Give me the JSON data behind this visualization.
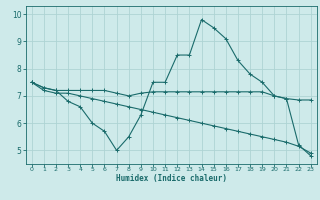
{
  "title": "",
  "xlabel": "Humidex (Indice chaleur)",
  "bg_color": "#ceeaea",
  "grid_color": "#aed4d4",
  "line_color": "#1a6b6b",
  "xlim": [
    -0.5,
    23.5
  ],
  "ylim": [
    4.5,
    10.3
  ],
  "xticks": [
    0,
    1,
    2,
    3,
    4,
    5,
    6,
    7,
    8,
    9,
    10,
    11,
    12,
    13,
    14,
    15,
    16,
    17,
    18,
    19,
    20,
    21,
    22,
    23
  ],
  "yticks": [
    5,
    6,
    7,
    8,
    9,
    10
  ],
  "x": [
    0,
    1,
    2,
    3,
    4,
    5,
    6,
    7,
    8,
    9,
    10,
    11,
    12,
    13,
    14,
    15,
    16,
    17,
    18,
    19,
    20,
    21,
    22,
    23
  ],
  "line1": [
    7.5,
    7.3,
    7.2,
    7.2,
    7.2,
    7.2,
    7.2,
    7.1,
    7.0,
    7.1,
    7.15,
    7.15,
    7.15,
    7.15,
    7.15,
    7.15,
    7.15,
    7.15,
    7.15,
    7.15,
    7.0,
    6.9,
    6.85,
    6.85
  ],
  "line2": [
    7.5,
    7.3,
    7.2,
    6.8,
    6.6,
    6.0,
    5.7,
    5.0,
    5.5,
    6.3,
    7.5,
    7.5,
    8.5,
    8.5,
    9.8,
    9.5,
    9.1,
    8.3,
    7.8,
    7.5,
    7.0,
    6.9,
    5.2,
    4.8
  ],
  "line3": [
    7.5,
    7.2,
    7.1,
    7.1,
    7.0,
    6.9,
    6.8,
    6.7,
    6.6,
    6.5,
    6.4,
    6.3,
    6.2,
    6.1,
    6.0,
    5.9,
    5.8,
    5.7,
    5.6,
    5.5,
    5.4,
    5.3,
    5.15,
    4.9
  ]
}
